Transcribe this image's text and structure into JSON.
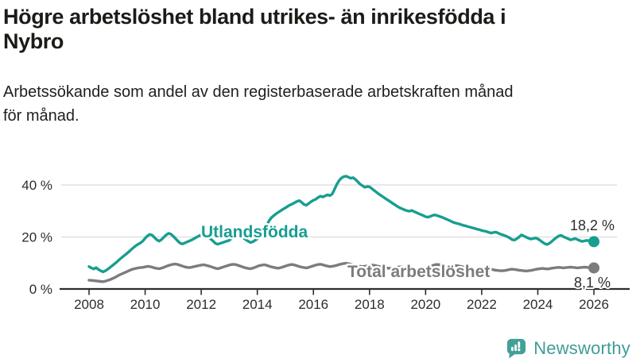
{
  "header": {
    "title": "Högre arbetslöshet bland utrikes- än inrikesfödda i Nybro",
    "title_lines": [
      "Högre arbetslöshet bland utrikes- än inrikesfödda i",
      "Nybro"
    ],
    "subtitle": "Arbetssökande som andel av den registerbaserade arbetskraften månad för månad.",
    "subtitle_lines": [
      "Arbetssökande som andel av den registerbaserade arbetskraften månad",
      "för månad."
    ]
  },
  "chart_data": {
    "type": "line",
    "unit": "%",
    "grid": "horizontal",
    "x_axis": {
      "start_year": 2008,
      "step_months": 1,
      "tick_years": [
        2008,
        2010,
        2012,
        2014,
        2016,
        2018,
        2020,
        2022,
        2024,
        2026
      ],
      "range": [
        2008,
        2026.2
      ]
    },
    "y_axis": {
      "tick_labels": [
        "0 %",
        "20 %",
        "40 %"
      ],
      "tick_values": [
        0,
        20,
        40
      ],
      "range": [
        0,
        45
      ]
    },
    "series": [
      {
        "name": "Utlandsfödda",
        "color": "#179e90",
        "end_label": "18,2 %",
        "end_value": 18.2,
        "values": [
          8.6,
          8.1,
          7.7,
          8.2,
          7.5,
          7.0,
          6.6,
          7.0,
          7.6,
          8.3,
          9.0,
          9.7,
          10.5,
          11.3,
          12.1,
          12.8,
          13.5,
          14.3,
          15.1,
          15.9,
          16.6,
          17.2,
          17.7,
          18.4,
          19.5,
          20.4,
          21.0,
          20.7,
          19.8,
          18.9,
          18.4,
          19.0,
          19.9,
          20.8,
          21.4,
          21.1,
          20.3,
          19.4,
          18.4,
          17.6,
          17.3,
          17.7,
          18.1,
          18.5,
          18.9,
          19.4,
          19.9,
          20.4,
          20.9,
          21.1,
          20.7,
          20.0,
          19.2,
          18.5,
          17.6,
          17.2,
          17.5,
          17.8,
          18.1,
          18.4,
          18.7,
          19.5,
          20.3,
          20.9,
          21.0,
          20.4,
          19.7,
          19.0,
          18.4,
          17.9,
          18.1,
          18.7,
          19.3,
          20.0,
          20.8,
          22.0,
          24.2,
          26.2,
          27.4,
          28.2,
          28.9,
          29.5,
          30.1,
          30.7,
          31.2,
          31.8,
          32.3,
          32.7,
          33.2,
          33.7,
          34.0,
          33.3,
          32.5,
          32.2,
          32.9,
          33.6,
          34.1,
          34.5,
          35.2,
          35.7,
          35.4,
          35.8,
          36.2,
          35.9,
          36.5,
          38.3,
          40.2,
          41.7,
          42.7,
          43.2,
          43.4,
          43.0,
          42.6,
          42.8,
          42.1,
          41.2,
          40.3,
          39.7,
          39.1,
          39.4,
          39.3,
          38.6,
          37.9,
          37.2,
          36.5,
          35.9,
          35.3,
          34.7,
          34.1,
          33.5,
          32.9,
          32.3,
          31.7,
          31.2,
          30.8,
          30.4,
          30.1,
          29.9,
          30.2,
          29.8,
          29.4,
          29.0,
          28.6,
          28.2,
          27.8,
          27.6,
          27.9,
          28.3,
          28.5,
          28.2,
          27.9,
          27.6,
          27.2,
          26.8,
          26.4,
          26.0,
          25.6,
          25.3,
          25.1,
          24.8,
          24.5,
          24.3,
          24.0,
          23.8,
          23.5,
          23.3,
          23.0,
          22.8,
          22.5,
          22.3,
          22.1,
          21.8,
          21.5,
          21.7,
          21.9,
          21.5,
          21.1,
          20.8,
          20.5,
          20.1,
          19.6,
          19.0,
          18.8,
          19.3,
          20.0,
          20.8,
          20.4,
          19.9,
          19.5,
          19.2,
          19.4,
          19.6,
          19.3,
          18.7,
          18.0,
          17.4,
          17.1,
          17.6,
          18.3,
          19.1,
          19.8,
          20.4,
          20.6,
          20.1,
          19.7,
          19.3,
          18.9,
          19.1,
          19.4,
          19.0,
          18.6,
          18.3,
          18.5,
          18.7,
          18.5,
          18.3,
          18.2
        ]
      },
      {
        "name": "Total arbetslöshet",
        "color": "#7b7b80",
        "end_label": "8,1 %",
        "end_value": 8.1,
        "values": [
          3.4,
          3.3,
          3.2,
          3.1,
          3.0,
          2.9,
          2.8,
          3.0,
          3.3,
          3.6,
          4.0,
          4.4,
          4.9,
          5.4,
          5.8,
          6.2,
          6.6,
          7.0,
          7.4,
          7.7,
          7.9,
          8.1,
          8.2,
          8.3,
          8.5,
          8.7,
          8.6,
          8.4,
          8.1,
          7.9,
          7.8,
          8.0,
          8.3,
          8.7,
          9.0,
          9.3,
          9.5,
          9.6,
          9.4,
          9.1,
          8.8,
          8.5,
          8.3,
          8.2,
          8.4,
          8.6,
          8.8,
          9.0,
          9.2,
          9.3,
          9.1,
          8.9,
          8.6,
          8.3,
          8.0,
          7.8,
          8.0,
          8.3,
          8.6,
          8.9,
          9.2,
          9.4,
          9.5,
          9.3,
          9.0,
          8.7,
          8.4,
          8.1,
          7.9,
          7.8,
          8.0,
          8.3,
          8.7,
          9.0,
          9.2,
          9.3,
          9.1,
          8.8,
          8.5,
          8.3,
          8.1,
          8.0,
          8.2,
          8.5,
          8.8,
          9.1,
          9.3,
          9.4,
          9.2,
          8.9,
          8.6,
          8.4,
          8.2,
          8.1,
          8.3,
          8.6,
          8.9,
          9.2,
          9.4,
          9.5,
          9.3,
          9.0,
          8.8,
          8.6,
          8.7,
          8.9,
          9.1,
          9.4,
          9.6,
          9.8,
          9.9,
          9.7,
          9.5,
          9.2,
          9.0,
          8.8,
          8.7,
          8.6,
          8.7,
          8.9,
          9.1,
          9.2,
          9.1,
          8.9,
          8.7,
          8.5,
          8.3,
          8.1,
          8.0,
          7.9,
          8.0,
          8.2,
          8.4,
          8.5,
          8.4,
          8.2,
          8.0,
          7.8,
          7.7,
          7.6,
          7.5,
          7.5,
          7.6,
          7.8,
          8.0,
          8.2,
          8.6,
          9.0,
          9.3,
          9.4,
          9.3,
          9.1,
          8.9,
          8.7,
          8.6,
          8.7,
          8.9,
          9.0,
          8.9,
          8.7,
          8.5,
          8.3,
          8.1,
          7.9,
          7.7,
          7.6,
          7.7,
          7.9,
          8.0,
          8.1,
          8.0,
          7.8,
          7.6,
          7.4,
          7.2,
          7.1,
          7.0,
          7.0,
          7.1,
          7.3,
          7.5,
          7.6,
          7.5,
          7.4,
          7.2,
          7.1,
          7.0,
          6.9,
          7.0,
          7.1,
          7.3,
          7.5,
          7.7,
          7.8,
          7.9,
          7.8,
          7.7,
          7.8,
          8.0,
          8.1,
          8.2,
          8.3,
          8.2,
          8.1,
          8.2,
          8.3,
          8.4,
          8.3,
          8.2,
          8.1,
          8.2,
          8.3,
          8.4,
          8.3,
          8.2,
          8.1,
          8.1
        ]
      }
    ]
  },
  "footer": {
    "brand": "Newsworthy",
    "brand_color": "#3f9d95",
    "logo_icon": "bar-chart-speech-bubble-icon"
  }
}
